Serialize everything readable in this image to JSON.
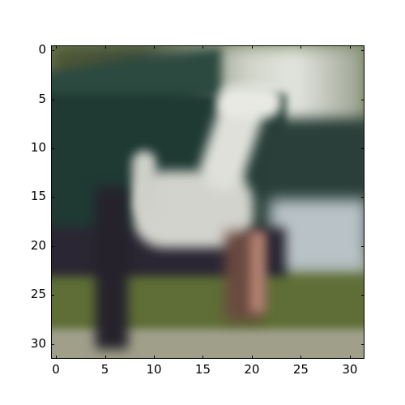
{
  "image": {
    "subject": "blurred low-resolution photo of a white horse walking on grass in front of a dark green building",
    "x_ticks": [
      "0",
      "5",
      "10",
      "15",
      "20",
      "25",
      "30"
    ],
    "y_ticks": [
      "0",
      "5",
      "10",
      "15",
      "20",
      "25",
      "30"
    ],
    "x_tick_values": [
      0,
      5,
      10,
      15,
      20,
      25,
      30
    ],
    "y_tick_values": [
      0,
      5,
      10,
      15,
      20,
      25,
      30
    ],
    "x_range": [
      -0.5,
      31.5
    ],
    "y_range": [
      -0.5,
      31.5
    ],
    "colors": {
      "building": "#1f3a33",
      "trees": "#c8cdbf",
      "grass": "#5f6e36",
      "path": "#a0a08a",
      "horse": "#d2d3cc",
      "shadow": "#25222b"
    }
  }
}
